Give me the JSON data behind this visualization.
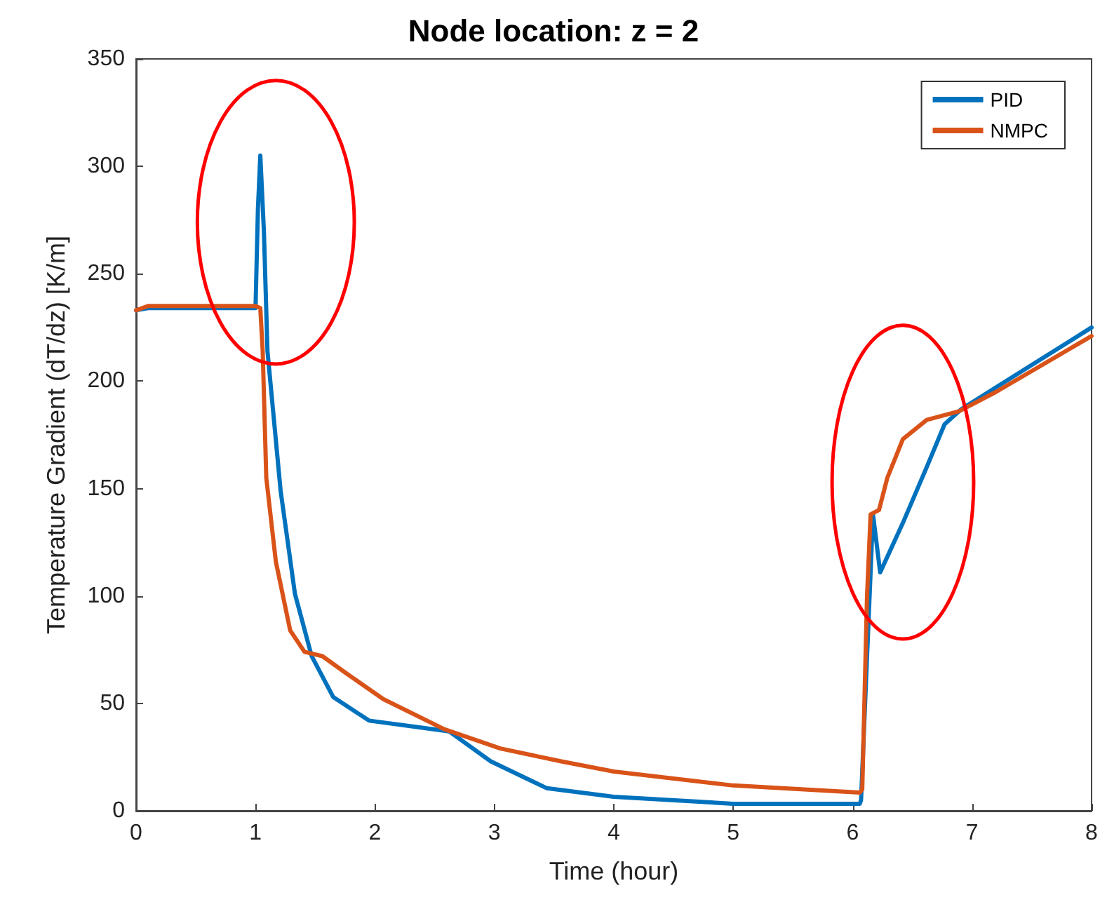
{
  "chart_data": {
    "type": "line",
    "title": "Node location: z = 2",
    "xlabel": "Time (hour)",
    "ylabel": "Temperature Gradient (dT/dz) [K/m]",
    "xlim": [
      0,
      8
    ],
    "xticks": [
      0,
      1,
      2,
      3,
      4,
      5,
      6,
      7,
      8
    ],
    "ylim": [
      0,
      350
    ],
    "yticks": [
      0,
      50,
      100,
      150,
      200,
      250,
      300,
      350
    ],
    "grid": false,
    "legend": "top right",
    "marker": "none",
    "line_style": "solid",
    "series": [
      {
        "name": "PID",
        "color": "#0072bd",
        "x": [
          0,
          0.1,
          0.5,
          1.0,
          1.02,
          1.04,
          1.07,
          1.1,
          1.21,
          1.33,
          1.47,
          1.65,
          1.95,
          2.35,
          2.62,
          2.97,
          3.44,
          4.0,
          5.0,
          6.06,
          6.07,
          6.17,
          6.23,
          6.42,
          6.62,
          6.77,
          6.91,
          8.0
        ],
        "values": [
          233,
          234,
          234,
          234,
          280,
          305,
          270,
          214,
          149,
          101,
          72,
          53,
          42,
          39,
          37,
          23,
          10.5,
          6.5,
          3.3,
          3.3,
          5,
          138,
          111,
          134,
          160,
          180,
          187,
          225
        ]
      },
      {
        "name": "NMPC",
        "color": "#d95319",
        "x": [
          0,
          0.1,
          0.5,
          1.0,
          1.04,
          1.06,
          1.09,
          1.17,
          1.29,
          1.41,
          1.56,
          1.76,
          2.07,
          2.58,
          3.05,
          3.56,
          4.0,
          5.0,
          6.06,
          6.08,
          6.12,
          6.15,
          6.22,
          6.29,
          6.42,
          6.62,
          6.89,
          7.2,
          8.0
        ],
        "values": [
          233,
          235,
          235,
          235,
          234,
          214,
          155,
          116,
          84,
          74,
          72,
          64,
          52,
          38,
          29,
          23,
          18.3,
          11.8,
          8.5,
          10,
          100,
          138,
          140,
          155,
          173,
          182,
          186,
          195,
          221
        ]
      }
    ]
  }
}
